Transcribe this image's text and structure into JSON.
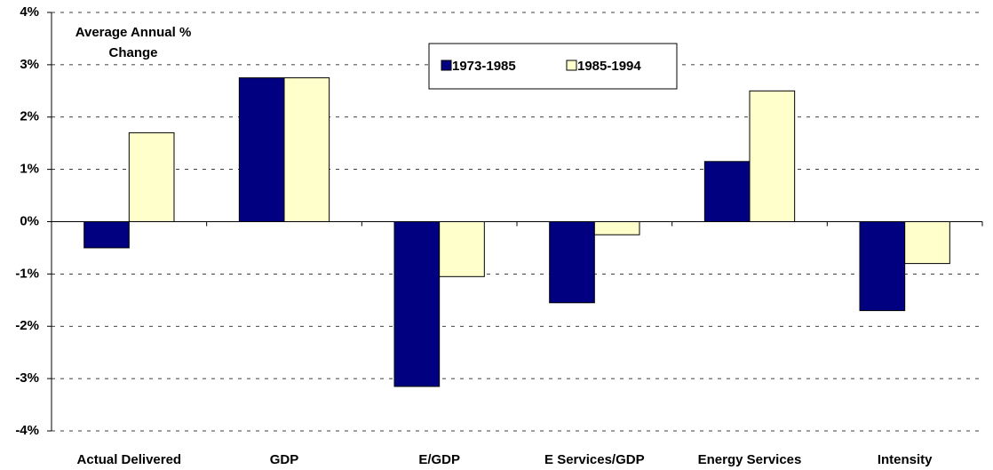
{
  "chart_data": {
    "type": "bar",
    "annotation": [
      "Average Annual %",
      "Change"
    ],
    "categories": [
      "Actual Delivered",
      "GDP",
      "E/GDP",
      "E Services/GDP",
      "Energy Services",
      "Intensity"
    ],
    "series": [
      {
        "name": "1973-1985",
        "color": "#000080",
        "values": [
          -0.5,
          2.75,
          -3.15,
          -1.55,
          1.15,
          -1.7
        ]
      },
      {
        "name": "1985-1994",
        "color": "#ffffcc",
        "values": [
          1.7,
          2.75,
          -1.05,
          -0.25,
          2.5,
          -0.8
        ]
      }
    ],
    "ylim": [
      -4,
      4
    ],
    "yticks": [
      {
        "value": -4,
        "label": "-4%"
      },
      {
        "value": -3,
        "label": "-3%"
      },
      {
        "value": -2,
        "label": "-2%"
      },
      {
        "value": -1,
        "label": "-1%"
      },
      {
        "value": 0,
        "label": "0%"
      },
      {
        "value": 1,
        "label": "1%"
      },
      {
        "value": 2,
        "label": "2%"
      },
      {
        "value": 3,
        "label": "3%"
      },
      {
        "value": 4,
        "label": "4%"
      }
    ],
    "grid": true
  }
}
